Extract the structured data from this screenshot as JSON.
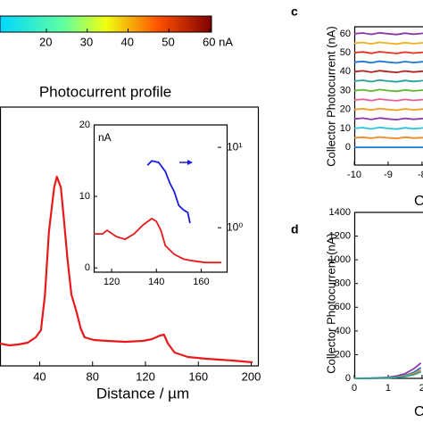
{
  "chart_data": [
    {
      "type": "colorbar",
      "ticks": [
        20,
        30,
        40,
        50,
        {
          "value": 60,
          "label": "60 nA"
        }
      ]
    },
    {
      "type": "line",
      "title": "Photocurrent profile",
      "xlabel": "Distance / µm",
      "x": [
        10,
        17,
        24,
        31,
        37,
        41,
        44,
        47,
        51,
        53,
        56,
        58,
        61,
        64,
        68,
        71,
        74,
        81,
        91,
        105,
        118,
        125,
        131,
        134,
        137,
        142,
        152,
        166,
        186,
        201
      ],
      "series": [
        {
          "color": "#e8191c",
          "values": [
            5,
            4.6,
            4.8,
            5.2,
            6.4,
            8,
            16,
            30,
            40,
            42.4,
            40,
            34,
            24,
            16,
            12,
            8.4,
            6.4,
            5.8,
            5.6,
            5.4,
            5.6,
            6,
            6.8,
            7,
            5,
            3,
            2,
            1.6,
            1.2,
            0.8
          ]
        }
      ],
      "xlim": [
        10,
        201
      ],
      "xticks": [
        40,
        80,
        120,
        160,
        200
      ],
      "ylim": [
        0,
        58
      ]
    },
    {
      "type": "line",
      "ylabel": "nA",
      "series": [
        {
          "color": "#e8191c",
          "x": [
            112,
            116,
            118,
            122,
            126,
            130,
            134,
            138,
            140,
            142,
            144,
            148,
            152,
            156,
            162,
            169
          ],
          "values": [
            4.75,
            4.75,
            5.25,
            4.4,
            4,
            4.75,
            6,
            6.9,
            6.5,
            5.25,
            3.1,
            1.9,
            1.25,
            1,
            0.75,
            0.75
          ]
        },
        {
          "color": "#1a1adb",
          "axis": "y2",
          "x": [
            136,
            138,
            141,
            144,
            146,
            148,
            150,
            152,
            154,
            155
          ],
          "values": [
            6.0,
            6.8,
            6.5,
            5.0,
            3.6,
            2.8,
            1.9,
            1.67,
            1.55,
            1.14
          ]
        }
      ],
      "xlim": [
        112,
        169
      ],
      "xticks": [
        120,
        140,
        160
      ],
      "ylim": [
        -0.6,
        20
      ],
      "yticks": [
        0,
        10,
        20
      ],
      "y2lim": [
        0.28,
        19
      ],
      "y2ticks": [
        {
          "value": 1,
          "label": "10⁰"
        },
        {
          "value": 10,
          "label": "10¹"
        }
      ],
      "y2log": true
    },
    {
      "type": "line",
      "panel": "c",
      "ylabel": "Collector Photocurrent (nA)",
      "xlabel": "C",
      "x": [
        -10,
        -9.75,
        -9.5,
        -9.25,
        -9,
        -8.75,
        -8.5,
        -8.25,
        -7.97
      ],
      "series": [
        {
          "color": "#1f77d4",
          "values": [
            0,
            0,
            0,
            0,
            0,
            0,
            0,
            0,
            0
          ]
        },
        {
          "color": "#f08a24",
          "values": [
            5,
            5.3,
            4.8,
            5.4,
            5,
            4.7,
            5.3,
            4.9,
            5.1
          ]
        },
        {
          "color": "#2bc4d9",
          "values": [
            10,
            10.4,
            9.7,
            10.5,
            10,
            9.6,
            10.3,
            9.8,
            10.2
          ]
        },
        {
          "color": "#8c3aa8",
          "values": [
            15,
            15.4,
            14.7,
            15.5,
            15,
            14.6,
            15.3,
            14.8,
            15.2
          ]
        },
        {
          "color": "#f0a020",
          "values": [
            20,
            20.4,
            19.7,
            20.5,
            20,
            19.6,
            20.3,
            19.8,
            20.2
          ]
        },
        {
          "color": "#e8609a",
          "values": [
            25,
            25.4,
            24.7,
            25.5,
            25,
            24.6,
            25.3,
            24.8,
            25.2
          ]
        },
        {
          "color": "#5cb82e",
          "values": [
            30,
            30.4,
            29.7,
            30.5,
            30,
            29.6,
            30.3,
            29.8,
            30.2
          ]
        },
        {
          "color": "#2aa198",
          "values": [
            35,
            35.4,
            34.7,
            35.5,
            35,
            34.6,
            35.3,
            34.8,
            35.2
          ]
        },
        {
          "color": "#b22222",
          "values": [
            40,
            40.4,
            39.7,
            40.5,
            40,
            39.6,
            40.3,
            39.8,
            40.2
          ]
        },
        {
          "color": "#1f77d4",
          "values": [
            45,
            45.4,
            44.7,
            45.5,
            45,
            44.6,
            45.3,
            44.8,
            45.2
          ]
        },
        {
          "color": "#e83020",
          "values": [
            50,
            50.4,
            49.7,
            50.5,
            50,
            49.6,
            50.3,
            49.8,
            50.2
          ]
        },
        {
          "color": "#f0b020",
          "values": [
            55,
            55.4,
            54.7,
            55.5,
            55,
            54.6,
            55.3,
            54.8,
            55.2
          ]
        },
        {
          "color": "#8c3aa8",
          "values": [
            60,
            60.4,
            59.7,
            60.5,
            60,
            59.6,
            60.3,
            59.8,
            60.2
          ]
        }
      ],
      "xlim": [
        -10,
        -7.97
      ],
      "xticks": [
        -10,
        -9,
        -8
      ],
      "ylim": [
        -9.4,
        63.7
      ],
      "yticks": [
        0,
        10,
        20,
        30,
        40,
        50,
        60
      ]
    },
    {
      "type": "line",
      "panel": "d",
      "ylabel": "Collector Photocurrent (nA)",
      "xlabel": "C",
      "x": [
        0,
        0.5,
        1,
        1.25,
        1.5,
        1.75,
        1.97
      ],
      "series": [
        {
          "color": "#8c3aa8",
          "values": [
            0,
            2,
            8,
            20,
            40,
            80,
            130
          ]
        },
        {
          "color": "#1f77d4",
          "values": [
            0,
            1,
            5,
            12,
            25,
            50,
            90
          ]
        },
        {
          "color": "#f08a24",
          "values": [
            0,
            1,
            4,
            10,
            20,
            40,
            70
          ]
        },
        {
          "color": "#2aa198",
          "values": [
            0,
            1,
            3,
            8,
            15,
            30,
            55
          ]
        }
      ],
      "xlim": [
        0,
        2.03
      ],
      "xticks": [
        0,
        1,
        2
      ],
      "ylim": [
        0,
        1400
      ],
      "yticks": [
        0,
        200,
        400,
        600,
        800,
        1000,
        1200,
        1400
      ]
    }
  ]
}
